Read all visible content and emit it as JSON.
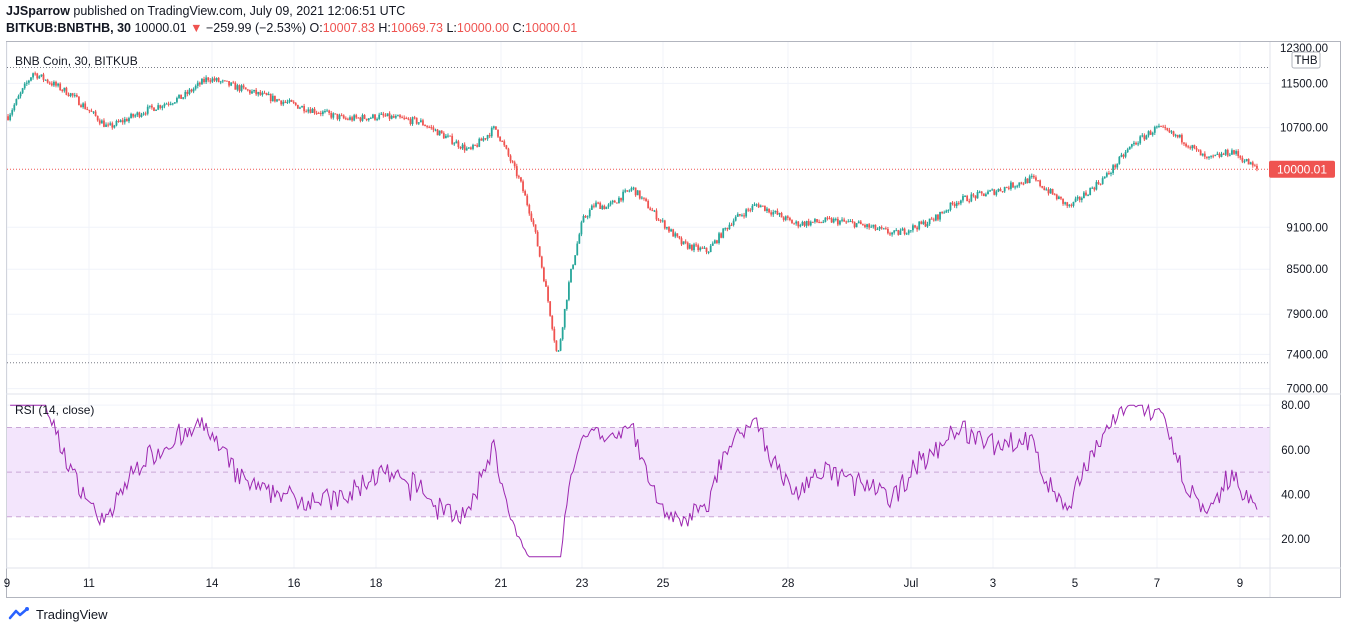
{
  "header": {
    "author": "JJSparrow",
    "published_text": "published on TradingView.com, July 09, 2021 12:06:51 UTC"
  },
  "quote": {
    "symbol": "BITKUB:BNBTHB, 30",
    "last": "10000.01",
    "arrow": "▼",
    "change": "−259.99 (−2.53%)",
    "o_label": "O:",
    "o_value": "10007.83",
    "h_label": "H:",
    "h_value": "10069.73",
    "l_label": "L:",
    "l_value": "10000.00",
    "c_label": "C:",
    "c_value": "10000.01"
  },
  "main_pane": {
    "title": "BNB Coin, 30, BITKUB",
    "currency": "THB",
    "price_label": "10000.01"
  },
  "rsi_pane": {
    "title": "RSI (14, close)"
  },
  "footer": {
    "brand": "TradingView"
  },
  "colors": {
    "up": "#26a69a",
    "down": "#ef5350",
    "rsi_line": "#9c27b0",
    "rsi_band": "#f3e5fc",
    "grid": "#f0f3fa"
  },
  "chart_data": [
    {
      "type": "candlestick",
      "title": "BNB Coin, 30, BITKUB",
      "y_ticks": [
        7000,
        7400,
        7900,
        8500,
        9100,
        10700,
        11500
      ],
      "ylim": [
        6950,
        12300
      ],
      "x_ticks": [
        "9",
        "11",
        "14",
        "16",
        "18",
        "21",
        "23",
        "25",
        "28",
        "Jul",
        "3",
        "5",
        "7",
        "9"
      ],
      "last_price": 10000.01,
      "dotted_high": 11800,
      "dotted_low": 7300,
      "trend": {
        "x": [
          0,
          0.02,
          0.05,
          0.08,
          0.11,
          0.14,
          0.16,
          0.2,
          0.23,
          0.27,
          0.3,
          0.33,
          0.37,
          0.39,
          0.41,
          0.42,
          0.43,
          0.44,
          0.45,
          0.46,
          0.47,
          0.48,
          0.5,
          0.52,
          0.54,
          0.56,
          0.58,
          0.6,
          0.63,
          0.66,
          0.68,
          0.71,
          0.74,
          0.76,
          0.79,
          0.82,
          0.85,
          0.88,
          0.9,
          0.92,
          0.94,
          0.96,
          0.98,
          1.0
        ],
        "y": [
          10900,
          11700,
          11300,
          10700,
          11000,
          11250,
          11600,
          11300,
          11100,
          10850,
          10900,
          10800,
          10300,
          10700,
          9800,
          9200,
          8300,
          7350,
          8400,
          9200,
          9450,
          9400,
          9700,
          9250,
          8850,
          8750,
          9200,
          9450,
          9150,
          9200,
          9150,
          9000,
          9200,
          9500,
          9650,
          9850,
          9400,
          9900,
          10400,
          10700,
          10500,
          10150,
          10300,
          10000
        ]
      }
    },
    {
      "type": "line",
      "title": "RSI (14, close)",
      "y_ticks": [
        20,
        40,
        60,
        80
      ],
      "ylim": [
        7,
        85
      ],
      "band": [
        30,
        70
      ],
      "midline": 50
    }
  ]
}
